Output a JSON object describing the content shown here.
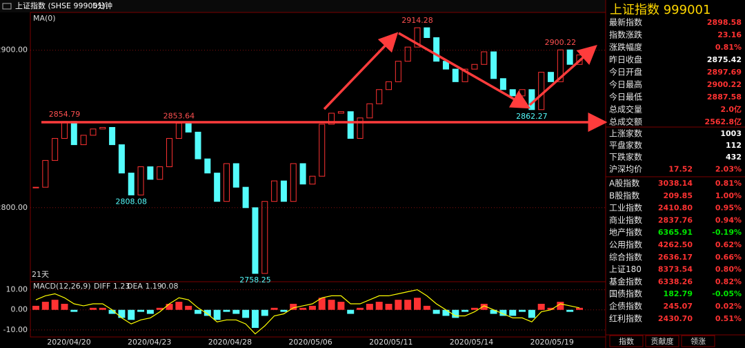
{
  "header": {
    "title": "上证指数 (SHSE 999001)",
    "period": "5分钟"
  },
  "chart_data": {
    "type": "candlestick",
    "indicator": "MA(0)",
    "range_label": "21天",
    "up_color": "#ff3232",
    "down_color": "#54fcfc",
    "closes": [
      2813,
      2830,
      2844,
      2854.79,
      2840,
      2846,
      2850,
      2851,
      2840,
      2822,
      2808.08,
      2826,
      2818,
      2826,
      2844,
      2853.64,
      2848,
      2831,
      2822,
      2804,
      2828,
      2813,
      2800,
      2758.25,
      2804,
      2817,
      2804,
      2828,
      2815,
      2820,
      2853,
      2860,
      2861,
      2844,
      2857,
      2866,
      2875,
      2880,
      2893,
      2902,
      2914.28,
      2908,
      2893,
      2888,
      2880,
      2888,
      2891,
      2899,
      2882,
      2875,
      2871,
      2875,
      2862.27,
      2886,
      2880,
      2900.22,
      2891,
      2897
    ],
    "extreme_labels": [
      2854.79,
      2853.64,
      2808.08,
      2758.25,
      2914.28,
      2862.27,
      2900.22
    ],
    "ylim": [
      2753,
      2924
    ],
    "yticks": [
      {
        "value": 2900,
        "label": "2900.00"
      },
      {
        "value": 2800,
        "label": "2800.00"
      }
    ],
    "x_labels": [
      "2020/04/20",
      "2020/04/23",
      "2020/04/28",
      "2020/05/06",
      "2020/05/11",
      "2020/05/14",
      "2020/05/19"
    ],
    "macd": {
      "title": "MACD(12,26,9)",
      "diff_label": "DIFF 1.23",
      "dea_label": "DEA 1.19",
      "macd_label": "0.08",
      "histogram": [
        2,
        4,
        5,
        3,
        -1,
        0,
        1,
        1,
        -2,
        -4,
        -5,
        -1,
        -2,
        1,
        3,
        4,
        2,
        -2,
        -3,
        -5,
        -1,
        -2,
        -4,
        -9,
        -3,
        1,
        -1,
        3,
        1,
        2,
        6,
        5,
        4,
        -2,
        1,
        3,
        4,
        3,
        5,
        5,
        6,
        2,
        -2,
        -3,
        -4,
        -1,
        1,
        3,
        -2,
        -3,
        -3,
        -1,
        -4,
        3,
        1,
        4,
        -1,
        1
      ],
      "diff": [
        5,
        7,
        8,
        6,
        3,
        2,
        3,
        3,
        0,
        -4,
        -7,
        -5,
        -4,
        -1,
        3,
        6,
        5,
        1,
        -2,
        -6,
        -5,
        -5,
        -7,
        -12,
        -8,
        -3,
        -2,
        1,
        2,
        3,
        6,
        7,
        7,
        3,
        3,
        5,
        7,
        7,
        8,
        9,
        10,
        7,
        3,
        0,
        -3,
        -3,
        -1,
        2,
        0,
        -2,
        -4,
        -4,
        -6,
        -1,
        0,
        3,
        2,
        1
      ],
      "diff_color": "#ffff00",
      "ylim": [
        -13.5,
        14
      ],
      "yticks": [
        {
          "value": 10,
          "label": "10.00"
        },
        {
          "value": 0,
          "label": "0.00"
        },
        {
          "value": -10,
          "label": "-10.00"
        }
      ]
    }
  },
  "quote_panel": {
    "title": "上证指数  999001",
    "sections": [
      [
        {
          "label": "最新指数",
          "value": "2898.58",
          "color": "#ff3232"
        },
        {
          "label": "指数涨跌",
          "value": "23.16",
          "color": "#ff3232"
        },
        {
          "label": "涨跌幅度",
          "value": "0.81%",
          "color": "#ff3232"
        },
        {
          "label": "昨日收盘",
          "value": "2875.42",
          "color": "#ffffff"
        },
        {
          "label": "今日开盘",
          "value": "2897.69",
          "color": "#ff3232"
        },
        {
          "label": "今日最高",
          "value": "2900.22",
          "color": "#ff3232"
        },
        {
          "label": "今日最低",
          "value": "2887.58",
          "color": "#ff3232"
        },
        {
          "label": "总成交量",
          "value": "2.0亿",
          "color": "#ff3232"
        },
        {
          "label": "总成交额",
          "value": "2562.8亿",
          "color": "#ff3232"
        }
      ],
      [
        {
          "label": "上涨家数",
          "value": "1003",
          "color": "#ffffff"
        },
        {
          "label": "平盘家数",
          "value": "112",
          "color": "#ffffff"
        },
        {
          "label": "下跌家数",
          "value": "432",
          "color": "#ffffff"
        },
        {
          "label": "沪深均价",
          "value": "17.52",
          "pct": "2.03%",
          "color": "#ff3232"
        }
      ],
      [
        {
          "label": "A股指数",
          "value": "3038.14",
          "pct": "0.81%",
          "color": "#ff3232"
        },
        {
          "label": "B股指数",
          "value": "209.85",
          "pct": "1.00%",
          "color": "#ff3232"
        },
        {
          "label": "工业指数",
          "value": "2410.80",
          "pct": "0.95%",
          "color": "#ff3232"
        },
        {
          "label": "商业指数",
          "value": "2837.76",
          "pct": "0.94%",
          "color": "#ff3232"
        },
        {
          "label": "地产指数",
          "value": "6365.91",
          "pct": "-0.19%",
          "color": "#00e600"
        },
        {
          "label": "公用指数",
          "value": "4262.50",
          "pct": "0.62%",
          "color": "#ff3232"
        },
        {
          "label": "综合指数",
          "value": "2636.17",
          "pct": "0.66%",
          "color": "#ff3232"
        },
        {
          "label": "上证180",
          "value": "8373.54",
          "pct": "0.80%",
          "color": "#ff3232"
        },
        {
          "label": "基金指数",
          "value": "6338.26",
          "pct": "0.82%",
          "color": "#ff3232"
        },
        {
          "label": "国债指数",
          "value": "182.79",
          "pct": "-0.05%",
          "color": "#00e600"
        },
        {
          "label": "企债指数",
          "value": "245.07",
          "pct": "0.02%",
          "color": "#ff3232"
        },
        {
          "label": "红利指数",
          "value": "2430.70",
          "pct": "0.51%",
          "color": "#ff3232"
        }
      ]
    ],
    "tabs": [
      "指数",
      "贡献度",
      "领涨"
    ]
  }
}
